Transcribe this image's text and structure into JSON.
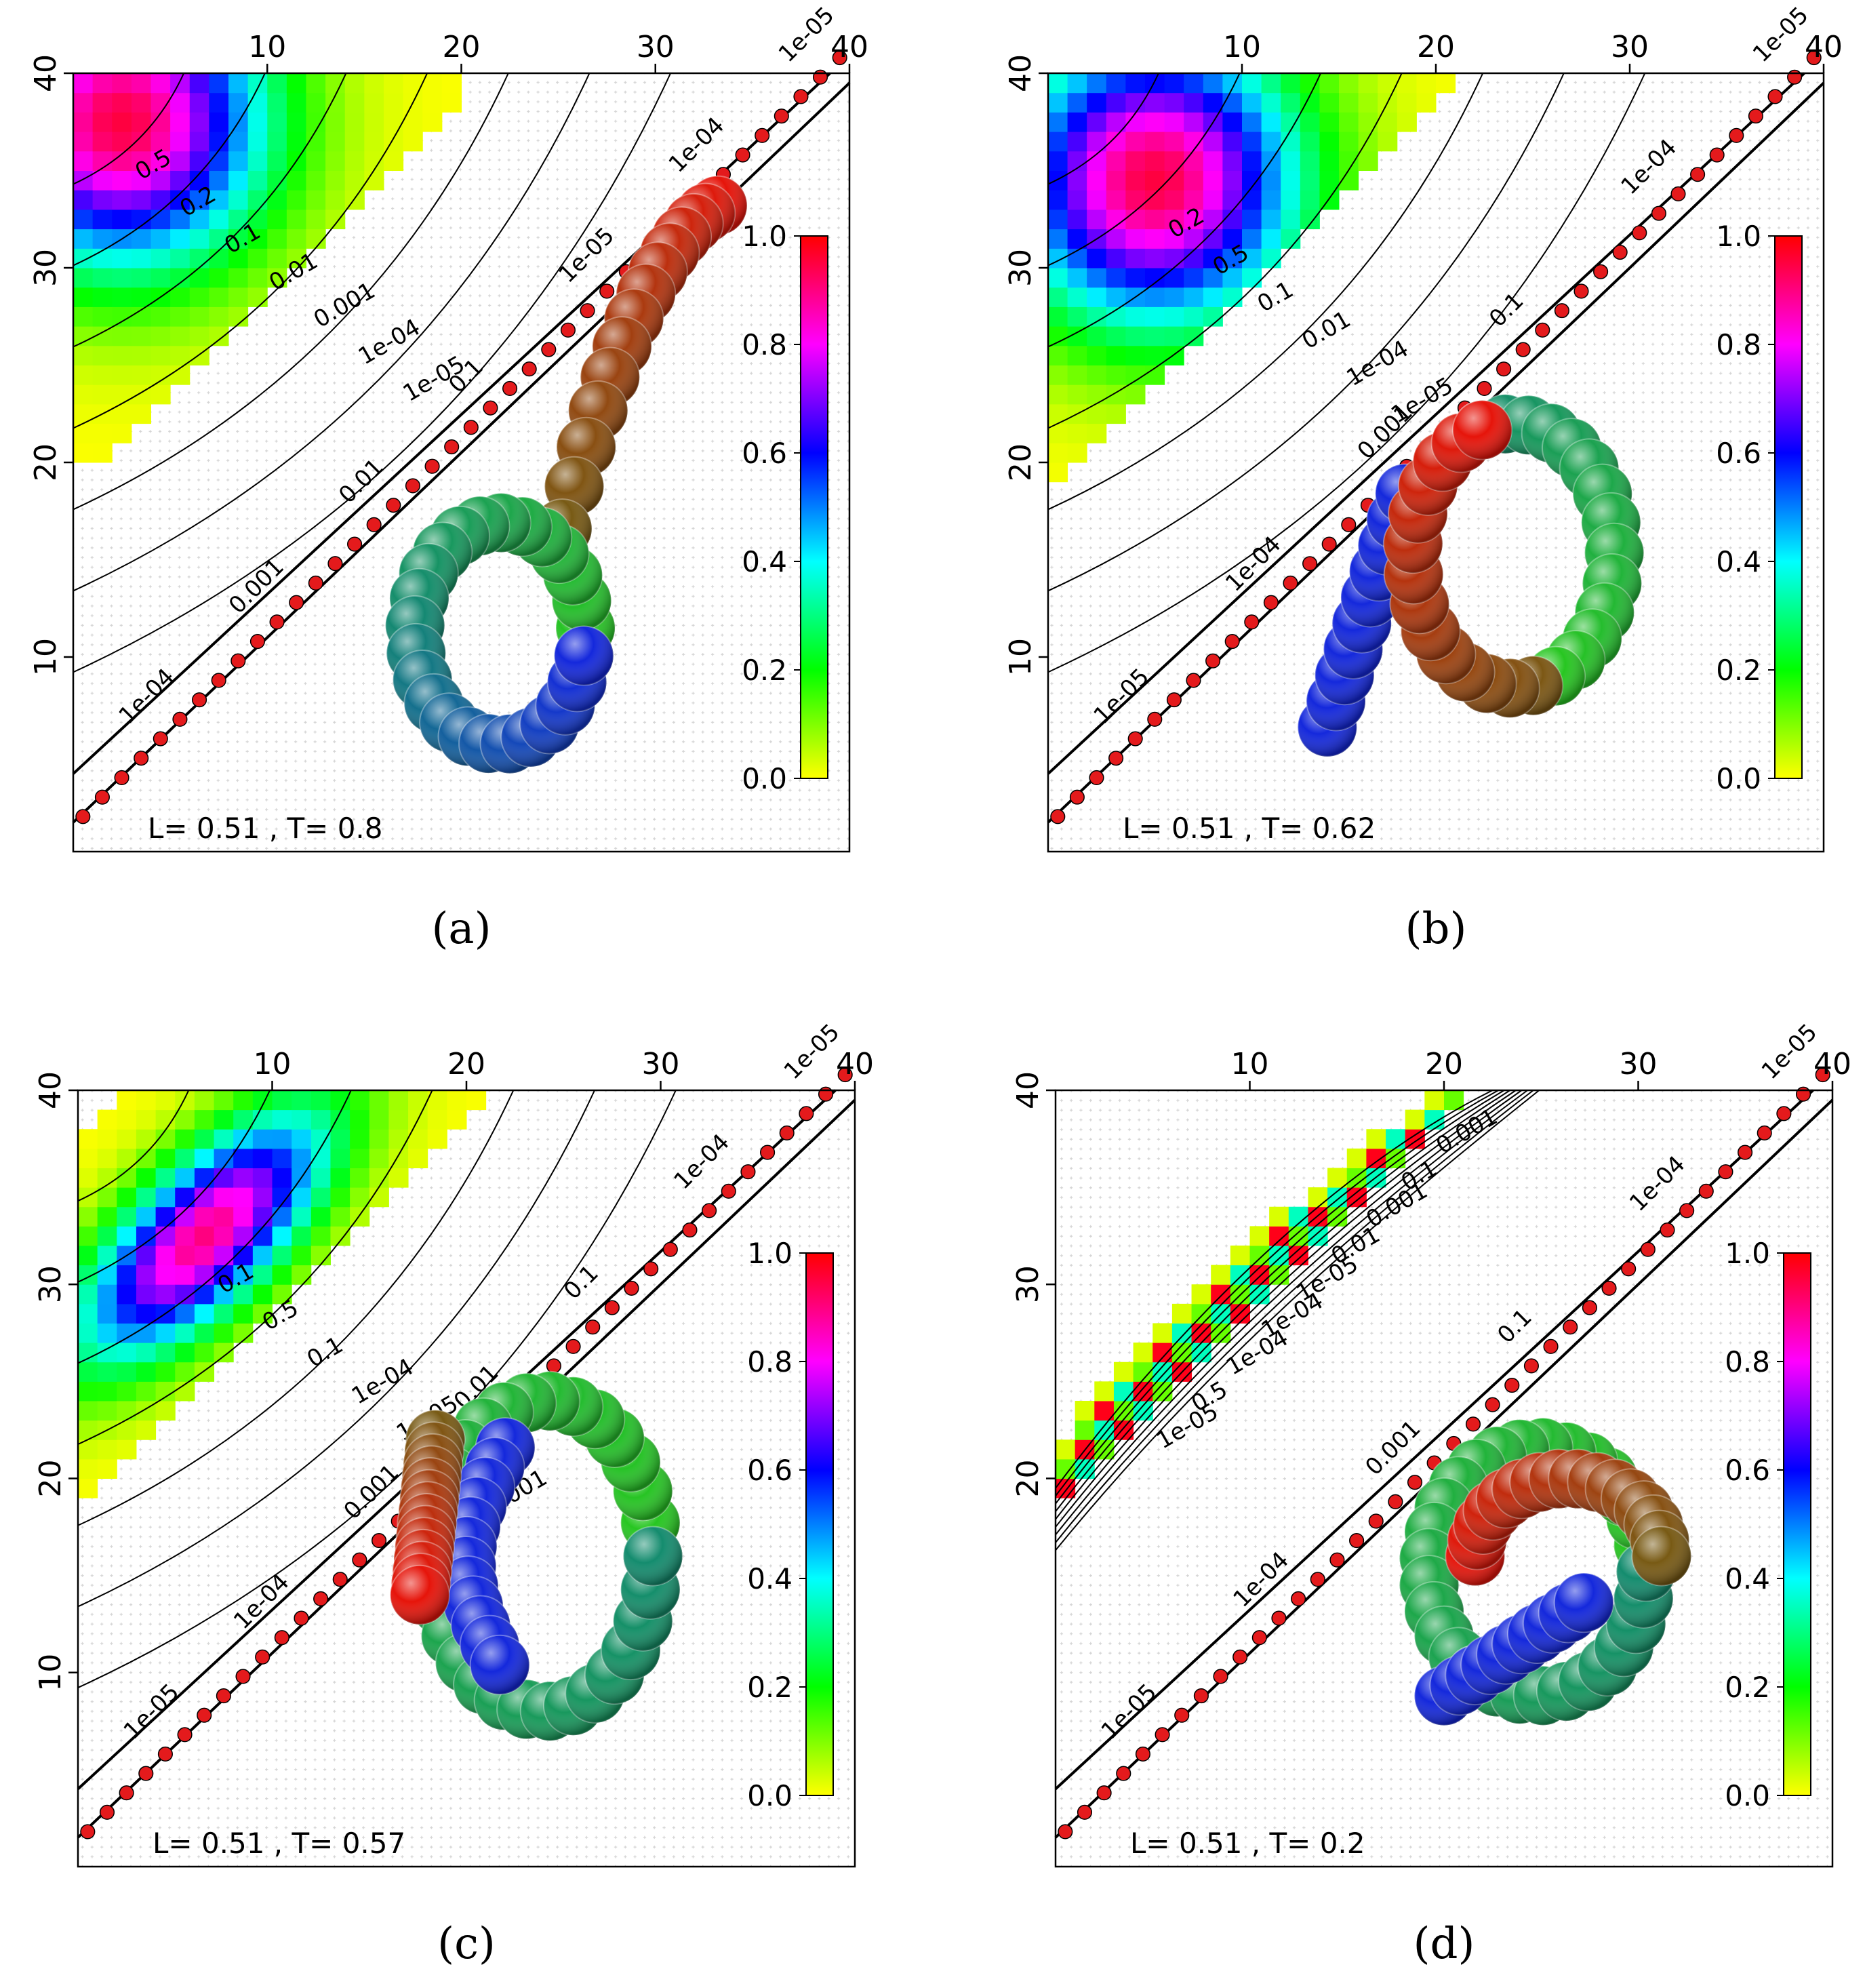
{
  "figure": {
    "colors": {
      "frame": "#000000",
      "grid_dot": "#b8b8b8",
      "diag_bead": "#e41a1c",
      "contour": "#000000"
    },
    "colorbar": {
      "ticks": [
        "0.0",
        "0.2",
        "0.4",
        "0.6",
        "0.8",
        "1.0"
      ],
      "stops": [
        "#ffff00",
        "#00ff00",
        "#00ffff",
        "#0000ff",
        "#ff00ff",
        "#ff0000"
      ]
    }
  },
  "chart_data": [
    {
      "type": "heatmap",
      "panel": "a",
      "caption": "(a)",
      "annotation": "L= 0.51 , T= 0.8",
      "xlim": [
        1,
        40
      ],
      "ylim": [
        1,
        40
      ],
      "xticks": [
        "10",
        "20",
        "30",
        "40"
      ],
      "yticks": [
        "10",
        "20",
        "30",
        "40"
      ],
      "contour_levels": [
        "0.5",
        "0.2",
        "0.1",
        "0.01",
        "0.001",
        "1e-04",
        "1e-05"
      ],
      "diagonal_labels": [
        "1e-04",
        "0.001",
        "0.01",
        "0.1",
        "1e-05",
        "1e-04",
        "1e-05"
      ],
      "hotspot": {
        "x": 3,
        "y": 38,
        "peak": 0.95
      },
      "polymer_shape": "loop with tail"
    },
    {
      "type": "heatmap",
      "panel": "b",
      "caption": "(b)",
      "annotation": "L= 0.51 , T= 0.62",
      "xlim": [
        1,
        40
      ],
      "ylim": [
        1,
        40
      ],
      "xticks": [
        "10",
        "20",
        "30",
        "40"
      ],
      "yticks": [
        "10",
        "20",
        "30",
        "40"
      ],
      "contour_levels": [
        "0.2",
        "0.5",
        "0.1",
        "0.01",
        "1e-04",
        "1e-05",
        "0.001"
      ],
      "diagonal_labels": [
        "1e-05",
        "1e-04",
        "0.001",
        "0.1",
        "1e-04",
        "1e-05"
      ],
      "hotspot": {
        "x": 6,
        "y": 35,
        "peak": 0.95
      },
      "polymer_shape": "loop with tail"
    },
    {
      "type": "heatmap",
      "panel": "c",
      "caption": "(c)",
      "annotation": "L= 0.51 , T= 0.57",
      "xlim": [
        1,
        40
      ],
      "ylim": [
        1,
        40
      ],
      "xticks": [
        "10",
        "20",
        "30",
        "40"
      ],
      "yticks": [
        "10",
        "20",
        "30",
        "40"
      ],
      "contour_levels": [
        "0.1",
        "0.5",
        "0.1",
        "1e-04",
        "1e-05",
        "0.2",
        "0.001"
      ],
      "diagonal_labels": [
        "1e-05",
        "1e-04",
        "0.001",
        "0.01",
        "0.1",
        "1e-04",
        "1e-05"
      ],
      "hotspot": {
        "x": 7,
        "y": 33,
        "peak": 0.9
      },
      "polymer_shape": "double loop"
    },
    {
      "type": "heatmap",
      "panel": "d",
      "caption": "(d)",
      "annotation": "L= 0.51 , T= 0.2",
      "xlim": [
        1,
        40
      ],
      "ylim": [
        1,
        40
      ],
      "xticks": [
        "10",
        "20",
        "30",
        "40"
      ],
      "yticks": [
        "20",
        "30",
        "40"
      ],
      "contour_levels": [
        "1e-05",
        "0.5",
        "1e-04",
        "1e-04",
        "1e-05",
        "0.01",
        "0.001",
        "0.1",
        "0.001"
      ],
      "diagonal_labels": [
        "1e-05",
        "1e-04",
        "0.001",
        "0.1",
        "1e-04",
        "1e-05"
      ],
      "band": {
        "from": [
          1,
          20
        ],
        "to": [
          21,
          39
        ]
      },
      "polymer_shape": "double loop"
    }
  ]
}
